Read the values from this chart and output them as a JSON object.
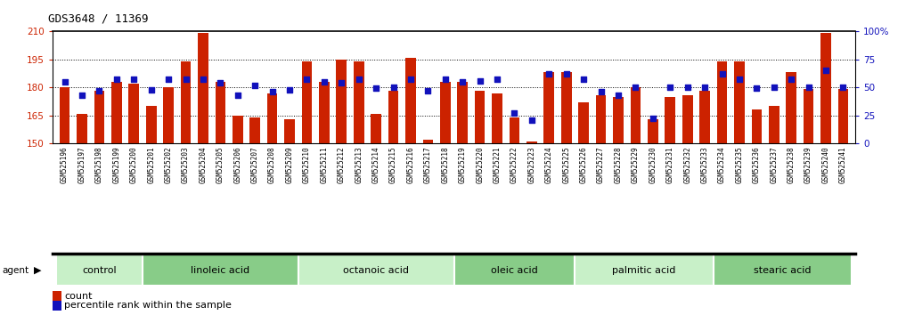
{
  "title": "GDS3648 / 11369",
  "samples": [
    "GSM525196",
    "GSM525197",
    "GSM525198",
    "GSM525199",
    "GSM525200",
    "GSM525201",
    "GSM525202",
    "GSM525203",
    "GSM525204",
    "GSM525205",
    "GSM525206",
    "GSM525207",
    "GSM525208",
    "GSM525209",
    "GSM525210",
    "GSM525211",
    "GSM525212",
    "GSM525213",
    "GSM525214",
    "GSM525215",
    "GSM525216",
    "GSM525217",
    "GSM525218",
    "GSM525219",
    "GSM525220",
    "GSM525221",
    "GSM525222",
    "GSM525223",
    "GSM525224",
    "GSM525225",
    "GSM525226",
    "GSM525227",
    "GSM525228",
    "GSM525229",
    "GSM525230",
    "GSM525231",
    "GSM525232",
    "GSM525233",
    "GSM525234",
    "GSM525235",
    "GSM525236",
    "GSM525237",
    "GSM525238",
    "GSM525239",
    "GSM525240",
    "GSM525241"
  ],
  "bar_values": [
    180,
    166,
    178,
    183,
    182,
    170,
    180,
    194,
    209,
    183,
    165,
    164,
    177,
    163,
    194,
    183,
    195,
    194,
    166,
    178,
    196,
    152,
    183,
    183,
    178,
    177,
    164,
    151,
    188,
    188,
    172,
    176,
    175,
    180,
    163,
    175,
    176,
    178,
    194,
    194,
    168,
    170,
    188,
    179,
    209,
    179
  ],
  "percentile_values": [
    55,
    43,
    47,
    57,
    57,
    48,
    57,
    57,
    57,
    54,
    43,
    52,
    46,
    48,
    57,
    55,
    54,
    57,
    49,
    50,
    57,
    47,
    57,
    55,
    56,
    57,
    27,
    21,
    62,
    62,
    57,
    46,
    43,
    50,
    22,
    50,
    50,
    50,
    62,
    57,
    49,
    50,
    57,
    50,
    65,
    50
  ],
  "groups": [
    {
      "label": "control",
      "start": 0,
      "end": 4
    },
    {
      "label": "linoleic acid",
      "start": 5,
      "end": 13
    },
    {
      "label": "octanoic acid",
      "start": 14,
      "end": 22
    },
    {
      "label": "oleic acid",
      "start": 23,
      "end": 29
    },
    {
      "label": "palmitic acid",
      "start": 30,
      "end": 37
    },
    {
      "label": "stearic acid",
      "start": 38,
      "end": 45
    }
  ],
  "ylim_left": [
    150,
    210
  ],
  "ylim_right": [
    0,
    100
  ],
  "yticks_left": [
    150,
    165,
    180,
    195,
    210
  ],
  "yticks_right": [
    0,
    25,
    50,
    75,
    100
  ],
  "bar_color": "#cc2200",
  "dot_color": "#1111bb",
  "bg_color": "#ffffff",
  "tick_bg": "#d8d8d8",
  "group_colors": [
    "#c8f0c8",
    "#88cc88"
  ],
  "title_fontsize": 9,
  "tick_fontsize": 5.5,
  "group_label_fontsize": 8,
  "legend_fontsize": 8
}
